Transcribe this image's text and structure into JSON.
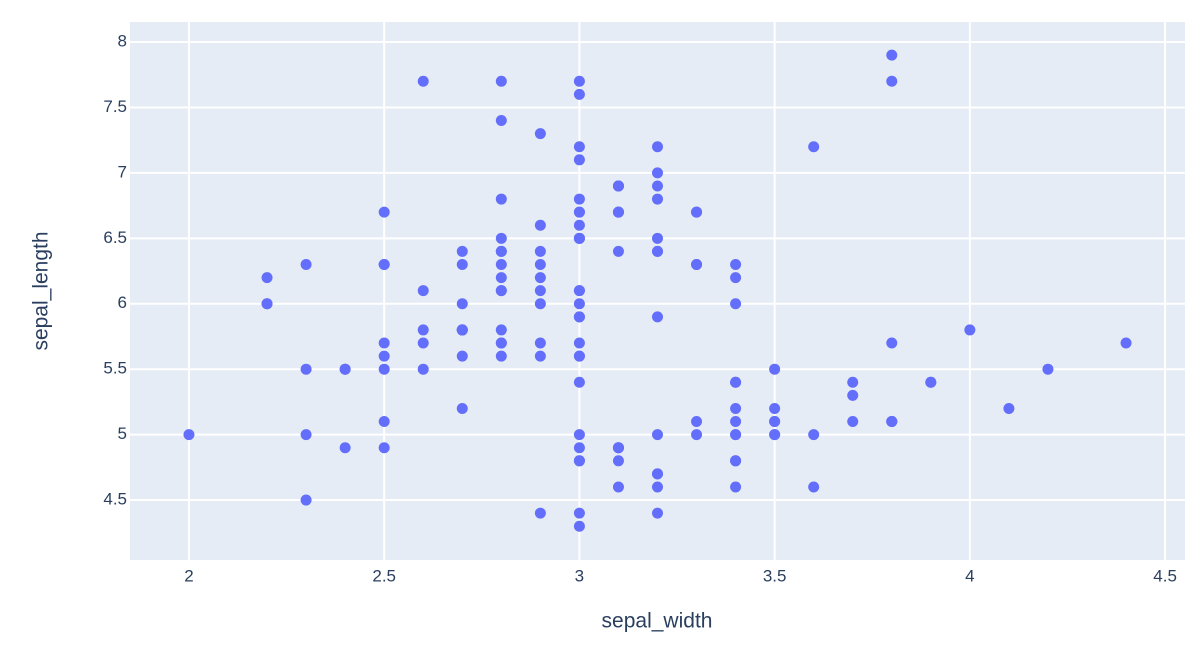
{
  "chart_data": {
    "type": "scatter",
    "x_label": "sepal_width",
    "y_label": "sepal_length",
    "x": [
      3.5,
      3.0,
      3.2,
      3.1,
      3.6,
      3.9,
      3.4,
      3.4,
      2.9,
      3.1,
      3.7,
      3.4,
      3.0,
      3.0,
      4.0,
      4.4,
      3.9,
      3.5,
      3.8,
      3.8,
      3.4,
      3.7,
      3.6,
      3.3,
      3.4,
      3.0,
      3.4,
      3.5,
      3.4,
      3.2,
      3.1,
      3.4,
      4.1,
      4.2,
      3.1,
      3.2,
      3.5,
      3.1,
      3.0,
      3.4,
      3.5,
      2.3,
      3.2,
      3.5,
      3.8,
      3.0,
      3.8,
      3.2,
      3.7,
      3.3,
      3.2,
      3.2,
      3.1,
      2.3,
      2.8,
      2.8,
      3.3,
      2.4,
      2.9,
      2.7,
      2.0,
      3.0,
      2.2,
      2.9,
      2.9,
      3.1,
      3.0,
      2.7,
      2.2,
      2.5,
      3.2,
      2.8,
      2.5,
      2.8,
      2.9,
      3.0,
      2.8,
      3.0,
      2.9,
      2.6,
      2.4,
      2.4,
      2.7,
      2.7,
      3.0,
      3.4,
      3.1,
      2.3,
      3.0,
      2.5,
      2.6,
      3.0,
      2.6,
      2.3,
      2.7,
      3.0,
      2.9,
      2.9,
      2.5,
      2.8,
      3.3,
      2.7,
      3.0,
      2.9,
      3.0,
      3.0,
      2.5,
      2.9,
      2.5,
      3.6,
      3.2,
      2.7,
      3.0,
      2.5,
      2.8,
      3.2,
      3.0,
      3.8,
      2.6,
      2.2,
      3.2,
      2.8,
      2.8,
      2.7,
      3.3,
      3.2,
      2.8,
      3.0,
      2.8,
      3.0,
      2.8,
      3.8,
      2.8,
      2.8,
      2.6,
      3.0,
      3.4,
      3.1,
      3.0,
      3.1,
      3.1,
      3.1,
      2.7,
      3.2,
      3.3,
      3.0,
      2.5,
      3.0,
      3.4,
      3.0
    ],
    "values": [
      5.1,
      4.9,
      4.7,
      4.6,
      5.0,
      5.4,
      4.6,
      5.0,
      4.4,
      4.9,
      5.4,
      4.8,
      4.8,
      4.3,
      5.8,
      5.7,
      5.4,
      5.1,
      5.7,
      5.1,
      5.4,
      5.1,
      4.6,
      5.1,
      4.8,
      5.0,
      5.0,
      5.2,
      5.2,
      4.7,
      4.8,
      5.4,
      5.2,
      5.5,
      4.9,
      5.0,
      5.5,
      4.9,
      4.4,
      5.1,
      5.0,
      4.5,
      4.4,
      5.0,
      5.1,
      4.8,
      5.1,
      4.6,
      5.3,
      5.0,
      7.0,
      6.4,
      6.9,
      5.5,
      6.5,
      5.7,
      6.3,
      4.9,
      6.6,
      5.2,
      5.0,
      5.9,
      6.0,
      6.1,
      5.6,
      6.7,
      5.6,
      5.8,
      6.2,
      5.6,
      5.9,
      6.1,
      6.3,
      6.1,
      6.4,
      6.6,
      6.8,
      6.7,
      6.0,
      5.7,
      5.5,
      5.5,
      5.8,
      6.0,
      5.4,
      6.0,
      6.7,
      6.3,
      5.6,
      5.5,
      5.5,
      6.1,
      5.8,
      5.0,
      5.6,
      5.7,
      5.7,
      6.2,
      5.1,
      5.7,
      6.3,
      5.8,
      7.1,
      6.3,
      6.5,
      7.6,
      4.9,
      7.3,
      6.7,
      7.2,
      6.5,
      6.4,
      6.8,
      5.7,
      5.8,
      6.4,
      6.5,
      7.7,
      7.7,
      6.0,
      6.9,
      5.6,
      7.7,
      6.3,
      6.7,
      7.2,
      6.2,
      6.1,
      6.4,
      7.2,
      7.4,
      7.9,
      6.4,
      6.3,
      6.1,
      7.7,
      6.3,
      6.4,
      6.0,
      6.9,
      6.7,
      6.9,
      5.8,
      6.8,
      6.7,
      6.7,
      6.3,
      6.5,
      6.2,
      5.9
    ],
    "color": "#636efa",
    "xlim": [
      1.849,
      4.551
    ],
    "ylim": [
      4.042,
      8.153
    ],
    "xticks": [
      2,
      2.5,
      3,
      3.5,
      4,
      4.5
    ],
    "yticks": [
      4.5,
      5,
      5.5,
      6,
      6.5,
      7,
      7.5,
      8
    ],
    "grid": true
  }
}
